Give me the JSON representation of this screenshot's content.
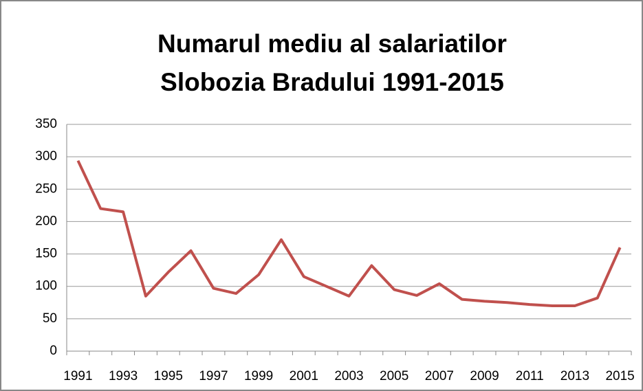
{
  "chart_data": {
    "type": "line",
    "title": [
      "Numarul mediu al salariatilor",
      "Slobozia Bradului  1991-2015"
    ],
    "categories": [
      "1991",
      null,
      "1993",
      null,
      "1995",
      null,
      "1997",
      null,
      "1999",
      null,
      "2001",
      null,
      "2003",
      null,
      "2005",
      null,
      "2007",
      null,
      "2009",
      null,
      "2011",
      null,
      "2013",
      null,
      "2015"
    ],
    "series": [
      {
        "name": "Numarul mediu al salariatilor",
        "color": "#c0504d",
        "values": [
          294,
          220,
          215,
          85,
          122,
          155,
          97,
          89,
          118,
          172,
          115,
          100,
          85,
          132,
          95,
          86,
          104,
          80,
          77,
          75,
          72,
          70,
          70,
          82,
          160
        ]
      }
    ],
    "ylim": [
      0,
      350
    ],
    "yticks": [
      0,
      50,
      100,
      150,
      200,
      250,
      300,
      350
    ],
    "grid": true,
    "legend": false
  }
}
